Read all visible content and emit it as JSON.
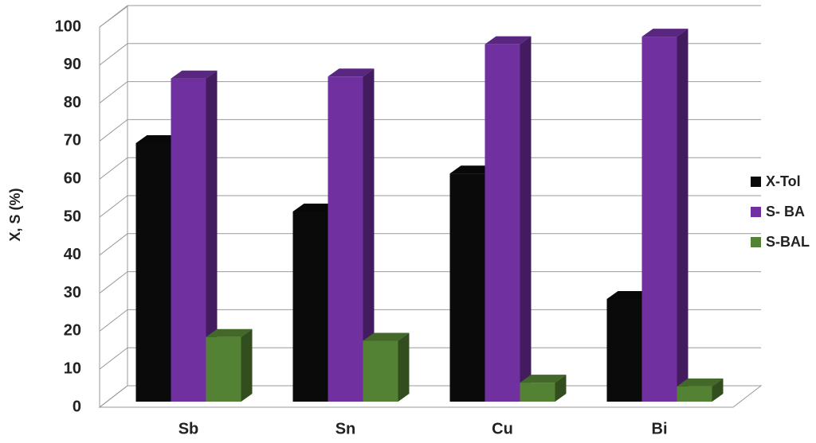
{
  "chart_data": {
    "type": "bar3d",
    "y_label": "X, S (%)",
    "categories": [
      "Sb",
      "Sn",
      "Cu",
      "Bi"
    ],
    "series": [
      {
        "name": "X-Tol",
        "color": "#0a0a0a",
        "values": [
          68,
          50,
          60,
          27
        ]
      },
      {
        "name": "S- BA",
        "color": "#7030a0",
        "values": [
          85,
          85.5,
          94,
          96
        ]
      },
      {
        "name": "S-BAL",
        "color": "#548235",
        "values": [
          17,
          16,
          5,
          4
        ]
      }
    ],
    "ylim": [
      0,
      100
    ],
    "yticks": [
      0,
      10,
      20,
      30,
      40,
      50,
      60,
      70,
      80,
      90,
      100
    ],
    "grid": true,
    "legend": "right"
  }
}
